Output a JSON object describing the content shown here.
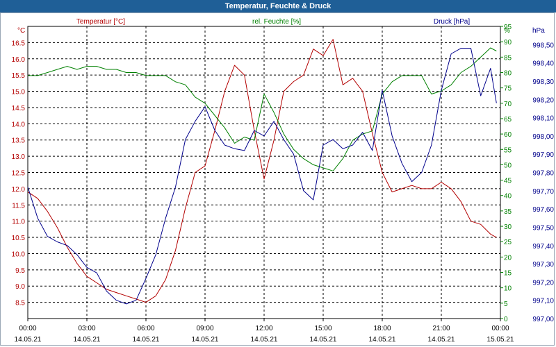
{
  "window": {
    "title": "Temperatur, Feuchte & Druck"
  },
  "colors": {
    "temperature": "#b30000",
    "humidity": "#008000",
    "pressure": "#00008b",
    "grid": "#000000",
    "axis_text": "#000000"
  },
  "chart_data": {
    "type": "line",
    "title": "Temperatur, Feuchte & Druck",
    "series_labels": {
      "temperature": "Temperatur [°C]",
      "humidity": "rel. Feuchte [%]",
      "pressure": "Druck [hPa]"
    },
    "axes": {
      "left": {
        "unit": "°C",
        "min": 8.0,
        "max": 17.0,
        "ticks": [
          "16.5",
          "16.0",
          "15.5",
          "15.0",
          "14.5",
          "14.0",
          "13.5",
          "13.0",
          "12.5",
          "12.0",
          "11.5",
          "11.0",
          "10.5",
          "10.0",
          "9.5",
          "9.0",
          "8.5"
        ]
      },
      "middle": {
        "unit": "%",
        "min": 0,
        "max": 95,
        "ticks": [
          "95",
          "90",
          "85",
          "80",
          "75",
          "70",
          "65",
          "60",
          "55",
          "50",
          "45",
          "40",
          "35",
          "30",
          "25",
          "20",
          "15",
          "10",
          "5",
          "0"
        ]
      },
      "right": {
        "unit": "hPa",
        "min": 997.0,
        "max": 998.6,
        "ticks": [
          "998,50",
          "998,40",
          "998,30",
          "998,20",
          "998,10",
          "998,00",
          "997,90",
          "997,80",
          "997,70",
          "997,60",
          "997,50",
          "997,40",
          "997,30",
          "997,20",
          "997,10",
          "997,00"
        ]
      }
    },
    "x_ticks": [
      {
        "hour": 0,
        "time": "00:00",
        "date": "14.05.21"
      },
      {
        "hour": 3,
        "time": "03:00",
        "date": "14.05.21"
      },
      {
        "hour": 6,
        "time": "06:00",
        "date": "14.05.21"
      },
      {
        "hour": 9,
        "time": "09:00",
        "date": "14.05.21"
      },
      {
        "hour": 12,
        "time": "12:00",
        "date": "14.05.21"
      },
      {
        "hour": 15,
        "time": "15:00",
        "date": "14.05.21"
      },
      {
        "hour": 18,
        "time": "18:00",
        "date": "14.05.21"
      },
      {
        "hour": 21,
        "time": "21:00",
        "date": "14.05.21"
      },
      {
        "hour": 24,
        "time": "00:00",
        "date": "15.05.21"
      }
    ],
    "series": [
      {
        "key": "temperature",
        "name": "Temperatur [°C]",
        "axis": "left",
        "x": [
          0,
          0.5,
          1,
          1.5,
          2,
          2.5,
          3,
          3.5,
          4,
          4.5,
          5,
          5.5,
          6,
          6.5,
          7,
          7.5,
          8,
          8.5,
          9,
          9.5,
          10,
          10.5,
          11,
          11.5,
          12,
          12.5,
          13,
          13.5,
          14,
          14.5,
          15,
          15.5,
          16,
          16.5,
          17,
          17.5,
          18,
          18.5,
          19,
          19.5,
          20,
          20.5,
          21,
          21.5,
          22,
          22.5,
          23,
          23.5,
          23.8
        ],
        "values": [
          11.9,
          11.7,
          11.3,
          10.8,
          10.2,
          9.7,
          9.3,
          9.1,
          8.9,
          8.8,
          8.7,
          8.6,
          8.5,
          8.7,
          9.2,
          10.1,
          11.4,
          12.5,
          12.7,
          13.8,
          15.0,
          15.8,
          15.5,
          13.8,
          12.3,
          13.5,
          15.0,
          15.3,
          15.5,
          16.3,
          16.1,
          16.6,
          15.2,
          15.4,
          15.0,
          13.7,
          12.5,
          11.9,
          12.0,
          12.1,
          12.0,
          12.0,
          12.2,
          12.0,
          11.6,
          11.0,
          10.9,
          10.6,
          10.5
        ]
      },
      {
        "key": "humidity",
        "name": "rel. Feuchte [%]",
        "axis": "middle",
        "x": [
          0,
          0.5,
          1,
          1.5,
          2,
          2.5,
          3,
          3.5,
          4,
          4.5,
          5,
          5.5,
          6,
          6.5,
          7,
          7.5,
          8,
          8.5,
          9,
          9.5,
          10,
          10.5,
          11,
          11.5,
          12,
          12.5,
          13,
          13.5,
          14,
          14.5,
          15,
          15.5,
          16,
          16.5,
          17,
          17.5,
          18,
          18.5,
          19,
          19.5,
          20,
          20.5,
          21,
          21.5,
          22,
          22.5,
          23,
          23.5,
          23.8
        ],
        "values": [
          79,
          79,
          80,
          81,
          82,
          81,
          82,
          82,
          81,
          81,
          80,
          80,
          79,
          79,
          79,
          77,
          76,
          72,
          70,
          66,
          62,
          57,
          59,
          58,
          73,
          67,
          60,
          55,
          52,
          50,
          49,
          48,
          52,
          58,
          60,
          61,
          73,
          77,
          79,
          79,
          79,
          73,
          74,
          76,
          80,
          82,
          85,
          88,
          87
        ]
      },
      {
        "key": "pressure",
        "name": "Druck [hPa]",
        "axis": "right",
        "x": [
          0,
          0.5,
          1,
          1.5,
          2,
          2.5,
          3,
          3.5,
          4,
          4.5,
          5,
          5.5,
          6,
          6.5,
          7,
          7.5,
          8,
          8.5,
          9,
          9.5,
          10,
          10.5,
          11,
          11.5,
          12,
          12.5,
          13,
          13.5,
          14,
          14.5,
          15,
          15.5,
          16,
          16.5,
          17,
          17.5,
          18,
          18.5,
          19,
          19.5,
          20,
          20.5,
          21,
          21.5,
          22,
          22.5,
          23,
          23.5,
          23.8
        ],
        "values": [
          997.72,
          997.55,
          997.45,
          997.42,
          997.4,
          997.35,
          997.28,
          997.25,
          997.15,
          997.1,
          997.08,
          997.1,
          997.22,
          997.35,
          997.55,
          997.72,
          997.98,
          998.08,
          998.16,
          998.03,
          997.95,
          997.93,
          997.92,
          998.03,
          998.0,
          998.08,
          997.98,
          997.9,
          997.7,
          997.65,
          997.95,
          997.98,
          997.93,
          997.95,
          998.02,
          997.92,
          998.25,
          998.0,
          997.85,
          997.75,
          997.8,
          997.95,
          998.25,
          998.45,
          998.48,
          998.48,
          998.22,
          998.37,
          998.18
        ]
      }
    ]
  }
}
